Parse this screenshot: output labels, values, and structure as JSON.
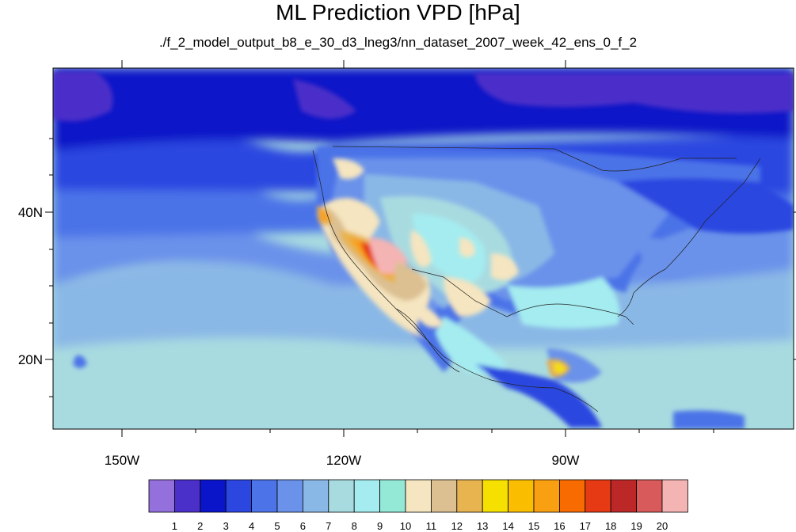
{
  "title": "ML Prediction VPD [hPa]",
  "subtitle": "./f_2_model_output_b8_e_30_d3_lneg3/nn_dataset_2007_week_42_ens_0_f_2",
  "lat_labels": [
    "40N",
    "20N"
  ],
  "lon_labels": [
    "150W",
    "120W",
    "90W"
  ],
  "colorbar": {
    "labels": [
      "1",
      "2",
      "3",
      "4",
      "5",
      "6",
      "7",
      "8",
      "9",
      "10",
      "11",
      "12",
      "13",
      "14",
      "15",
      "16",
      "17",
      "18",
      "19",
      "20"
    ],
    "colors": [
      "#9370db",
      "#4b2fc9",
      "#0a14c8",
      "#2b47e0",
      "#4c73e8",
      "#6b92ea",
      "#8ab8e6",
      "#a8dbe0",
      "#a4ecf0",
      "#94e8d6",
      "#f5e5c0",
      "#dcc092",
      "#e8b450",
      "#f5e000",
      "#fbbd00",
      "#f99f12",
      "#f76b00",
      "#e63a14",
      "#bc2828",
      "#d85a5a",
      "#f5b4b4"
    ]
  }
}
